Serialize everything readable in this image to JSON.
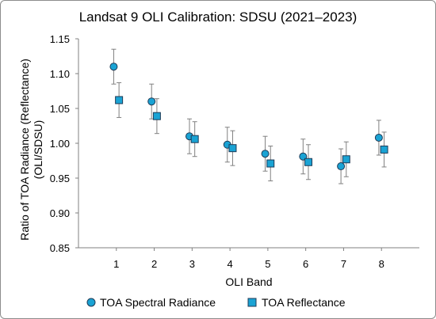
{
  "chart_data": {
    "type": "scatter",
    "title": "Landsat 9 OLI Calibration: SDSU (2021–2023)",
    "xlabel": "OLI Band",
    "ylabel_line1": "Ratio of TOA Radiance (Reflectance)",
    "ylabel_line2": "(OLI/SDSU)",
    "x_ticks": [
      1,
      2,
      3,
      4,
      5,
      6,
      7,
      8
    ],
    "xlim": [
      0,
      9
    ],
    "ylim": [
      0.85,
      1.15
    ],
    "y_ticks": [
      "0.85",
      "0.90",
      "0.95",
      "1.00",
      "1.05",
      "1.10",
      "1.15"
    ],
    "grid": false,
    "legend_position": "bottom",
    "series": [
      {
        "name": "TOA Spectral Radiance",
        "marker": "circle",
        "x": [
          1,
          2,
          3,
          4,
          5,
          6,
          7,
          8
        ],
        "y": [
          1.11,
          1.06,
          1.01,
          0.998,
          0.985,
          0.981,
          0.967,
          1.008
        ],
        "error": [
          0.025,
          0.025,
          0.025,
          0.025,
          0.025,
          0.025,
          0.025,
          0.025
        ]
      },
      {
        "name": "TOA Reflectance",
        "marker": "square",
        "x": [
          1,
          2,
          3,
          4,
          5,
          6,
          7,
          8
        ],
        "y": [
          1.062,
          1.039,
          1.006,
          0.993,
          0.971,
          0.973,
          0.977,
          0.991
        ],
        "error": [
          0.025,
          0.025,
          0.025,
          0.025,
          0.025,
          0.025,
          0.025,
          0.025
        ]
      }
    ]
  },
  "colors": {
    "marker_fill": "#1aa3d4",
    "marker_edge": "#1f3b57",
    "error_bar": "#808080",
    "axis": "#808080"
  }
}
